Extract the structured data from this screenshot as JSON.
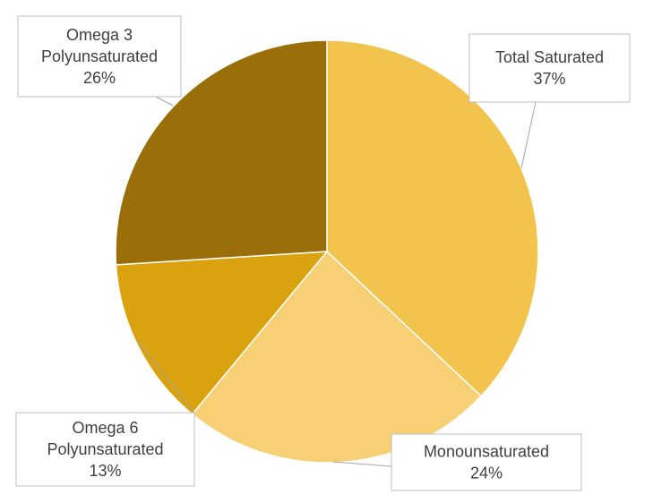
{
  "chart_data": {
    "type": "pie",
    "title": "",
    "slices": [
      {
        "label": "Total Saturated",
        "value": 37,
        "value_label": "37%",
        "color": "#F2C44D"
      },
      {
        "label": "Monounsaturated",
        "value": 24,
        "value_label": "24%",
        "color": "#F7D075"
      },
      {
        "label": "Omega 6 Polyunsaturated",
        "label_lines": [
          "Omega 6",
          "Polyunsaturated"
        ],
        "value": 13,
        "value_label": "13%",
        "color": "#D9A20E"
      },
      {
        "label": "Omega 3 Polyunsaturated",
        "label_lines": [
          "Omega 3",
          "Polyunsaturated"
        ],
        "value": 26,
        "value_label": "26%",
        "color": "#9A6E08"
      }
    ],
    "start_angle_deg": 0,
    "direction": "clockwise",
    "legend": "none",
    "data_labels": "callouts"
  }
}
